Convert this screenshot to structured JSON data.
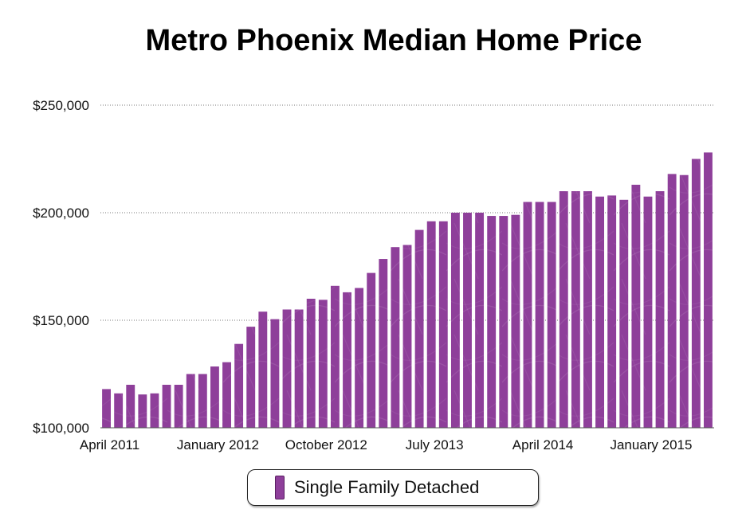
{
  "chart_data": {
    "type": "bar",
    "title": "Metro Phoenix Median Home Price",
    "xlabel": "",
    "ylabel": "",
    "ylim": [
      100000,
      250000
    ],
    "y_ticks": [
      "$100,000",
      "$150,000",
      "$200,000",
      "$250,000"
    ],
    "y_tick_values": [
      100000,
      150000,
      200000,
      250000
    ],
    "x_tick_labels": [
      "April 2011",
      "January 2012",
      "October 2012",
      "July 2013",
      "April 2014",
      "January 2015"
    ],
    "x_tick_indices": [
      0,
      9,
      18,
      27,
      36,
      45
    ],
    "grid": "horizontal dotted",
    "legend_position": "bottom",
    "bar_color": "#8e3f9a",
    "categories": [
      "April 2011",
      "May 2011",
      "June 2011",
      "July 2011",
      "August 2011",
      "September 2011",
      "October 2011",
      "November 2011",
      "December 2011",
      "January 2012",
      "February 2012",
      "March 2012",
      "April 2012",
      "May 2012",
      "June 2012",
      "July 2012",
      "August 2012",
      "September 2012",
      "October 2012",
      "November 2012",
      "December 2012",
      "January 2013",
      "February 2013",
      "March 2013",
      "April 2013",
      "May 2013",
      "June 2013",
      "July 2013",
      "August 2013",
      "September 2013",
      "October 2013",
      "November 2013",
      "December 2013",
      "January 2014",
      "February 2014",
      "March 2014",
      "April 2014",
      "May 2014",
      "June 2014",
      "July 2014",
      "August 2014",
      "September 2014",
      "October 2014",
      "November 2014",
      "December 2014",
      "January 2015",
      "February 2015",
      "March 2015",
      "April 2015",
      "May 2015",
      "June 2015"
    ],
    "series": [
      {
        "name": "Single Family Detached",
        "values": [
          118000,
          116000,
          120000,
          115500,
          116000,
          120000,
          120000,
          125000,
          125000,
          128500,
          130500,
          139000,
          147000,
          154000,
          150500,
          155000,
          155000,
          160000,
          159500,
          166000,
          163000,
          165000,
          172000,
          178500,
          184000,
          185000,
          192000,
          196000,
          196000,
          200000,
          200000,
          200000,
          198500,
          198500,
          199000,
          205000,
          205000,
          205000,
          210000,
          210000,
          210000,
          207500,
          208000,
          206000,
          213000,
          207500,
          210000,
          218000,
          217500,
          225000,
          228000
        ]
      }
    ]
  }
}
